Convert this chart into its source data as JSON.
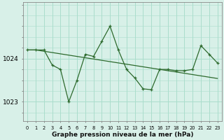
{
  "x": [
    0,
    1,
    2,
    3,
    4,
    5,
    6,
    7,
    8,
    9,
    10,
    11,
    12,
    13,
    14,
    15,
    16,
    17,
    18,
    19,
    20,
    21,
    22,
    23
  ],
  "line_volatile": [
    1024.2,
    1024.2,
    1024.2,
    1023.85,
    1023.75,
    1023.0,
    1023.5,
    1024.1,
    1024.05,
    1024.4,
    1024.75,
    1024.2,
    1023.75,
    1023.55,
    1023.3,
    1023.28,
    1023.75,
    1023.75,
    1023.72,
    1023.72,
    1023.75,
    1024.3,
    1024.1,
    1023.9
  ],
  "line_smooth": [
    1024.2,
    1024.2,
    1024.17,
    1024.14,
    1024.11,
    1024.08,
    1024.05,
    1024.02,
    1023.99,
    1023.96,
    1023.93,
    1023.9,
    1023.87,
    1023.84,
    1023.81,
    1023.78,
    1023.75,
    1023.72,
    1023.69,
    1023.66,
    1023.63,
    1023.6,
    1023.57,
    1023.54
  ],
  "background_color": "#d8f0e8",
  "grid_color": "#aaddcc",
  "line_color": "#2d6a2d",
  "xlabel": "Graphe pression niveau de la mer (hPa)",
  "ylim_min": 1022.55,
  "ylim_max": 1025.3,
  "xlim_min": -0.5,
  "xlim_max": 23.5,
  "yticks": [
    1023,
    1024
  ],
  "xticks": [
    0,
    1,
    2,
    3,
    4,
    5,
    6,
    7,
    8,
    9,
    10,
    11,
    12,
    13,
    14,
    15,
    16,
    17,
    18,
    19,
    20,
    21,
    22,
    23
  ]
}
